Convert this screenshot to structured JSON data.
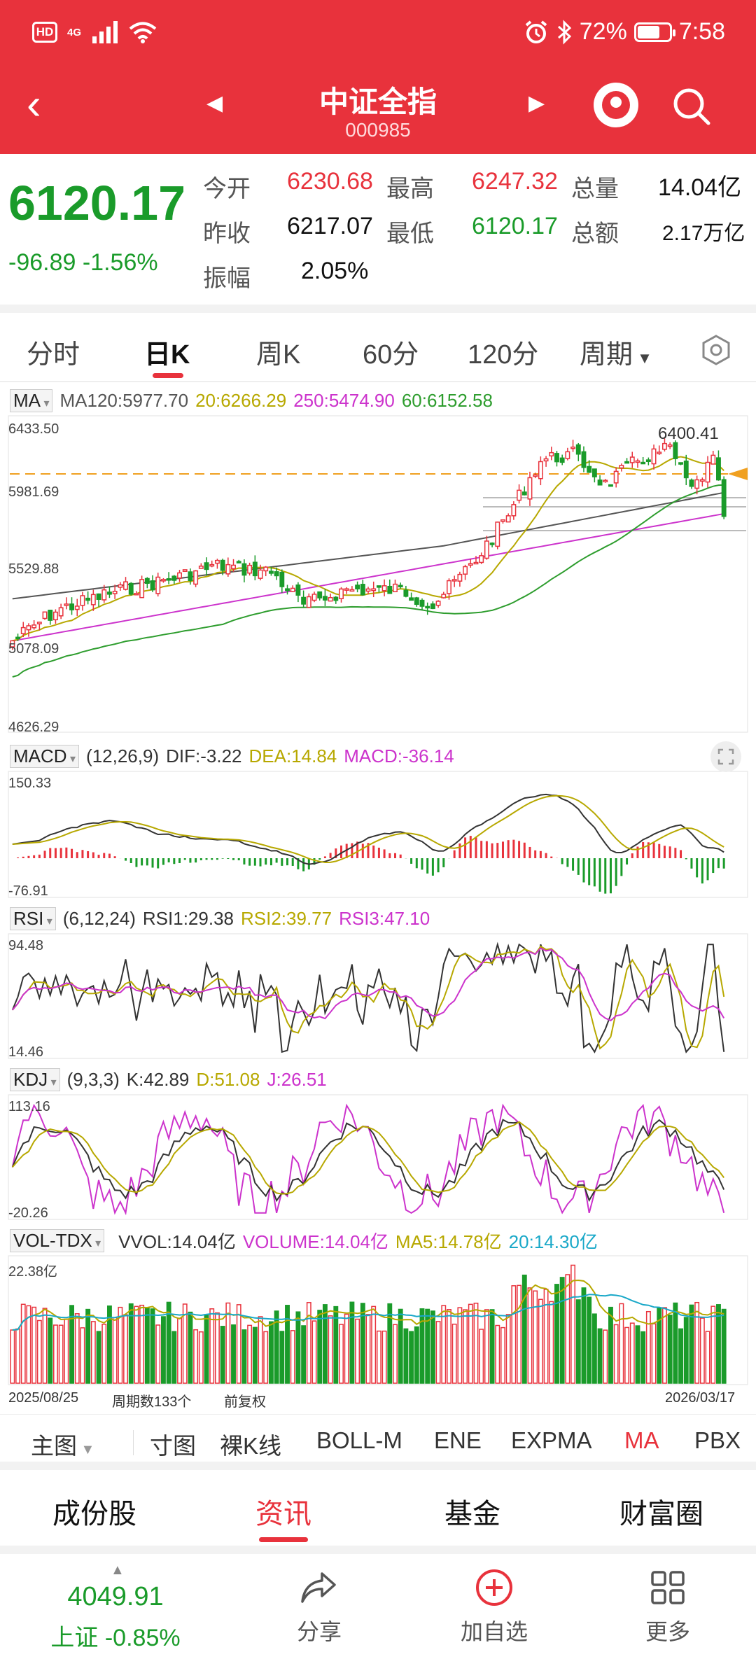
{
  "status_bar": {
    "hd": "HD",
    "network": "4G",
    "battery": "72%",
    "battery_level": 0.72,
    "time": "7:58"
  },
  "header": {
    "title": "中证全指",
    "code": "000985"
  },
  "quote": {
    "price": "6120.17",
    "change": "-96.89",
    "change_pct": "-1.56%",
    "open_label": "今开",
    "open": "6230.68",
    "high_label": "最高",
    "high": "6247.32",
    "volume_label": "总量",
    "volume": "14.04亿",
    "prev_close_label": "昨收",
    "prev_close": "6217.07",
    "low_label": "最低",
    "low": "6120.17",
    "amount_label": "总额",
    "amount": "2.17万亿",
    "amplitude_label": "振幅",
    "amplitude": "2.05%"
  },
  "period_tabs": [
    "分时",
    "日K",
    "周K",
    "60分",
    "120分",
    "周期"
  ],
  "active_period": "日K",
  "ma_legend": {
    "name": "MA",
    "ma120": "MA120:5977.70",
    "ma20": "20:6266.29",
    "ma250": "250:5474.90",
    "ma60": "60:6152.58"
  },
  "price_axis": [
    "6433.50",
    "5981.69",
    "5529.88",
    "5078.09",
    "4626.29"
  ],
  "price_annotation": "6400.41",
  "macd_legend": {
    "name": "MACD",
    "params": "(12,26,9)",
    "dif": "DIF:-3.22",
    "dea": "DEA:14.84",
    "macd": "MACD:-36.14"
  },
  "macd_axis": [
    "150.33",
    "-76.91"
  ],
  "rsi_legend": {
    "name": "RSI",
    "params": "(6,12,24)",
    "rsi1": "RSI1:29.38",
    "rsi2": "RSI2:39.77",
    "rsi3": "RSI3:47.10"
  },
  "rsi_axis": [
    "94.48",
    "14.46"
  ],
  "kdj_legend": {
    "name": "KDJ",
    "params": "(9,3,3)",
    "k": "K:42.89",
    "d": "D:51.08",
    "j": "J:26.51"
  },
  "kdj_axis": [
    "113.16",
    "-20.26"
  ],
  "vol_legend": {
    "name": "VOL-TDX",
    "vvol": "VVOL:14.04亿",
    "volume": "VOLUME:14.04亿",
    "ma5": "MA5:14.78亿",
    "ma20": "20:14.30亿"
  },
  "vol_axis": [
    "22.38亿"
  ],
  "footer": {
    "start_date": "2025/08/25",
    "period_count": "周期数133个",
    "adjust": "前复权",
    "end_date": "2026/03/17"
  },
  "indicator_bar": [
    "主图",
    "寸图",
    "裸K线",
    "BOLL-M",
    "ENE",
    "EXPMA",
    "MA",
    "PBX"
  ],
  "active_indicator": "MA",
  "bottom_tabs": [
    "成份股",
    "资讯",
    "基金",
    "财富圈"
  ],
  "active_bottom_tab": "资讯",
  "shanghai": {
    "value": "4049.91",
    "change": "上证 -0.85%"
  },
  "actions": [
    {
      "label": "分享",
      "icon": "share-icon"
    },
    {
      "label": "加自选",
      "icon": "add-watchlist-icon"
    },
    {
      "label": "更多",
      "icon": "more-grid-icon"
    }
  ],
  "colors": {
    "header": "#e8323c",
    "up": "#e8323c",
    "down": "#1a9b2a",
    "ma20": "#b7a800",
    "ma60": "#2e9d2e",
    "ma120": "#555555",
    "ma250": "#cc33cc"
  }
}
